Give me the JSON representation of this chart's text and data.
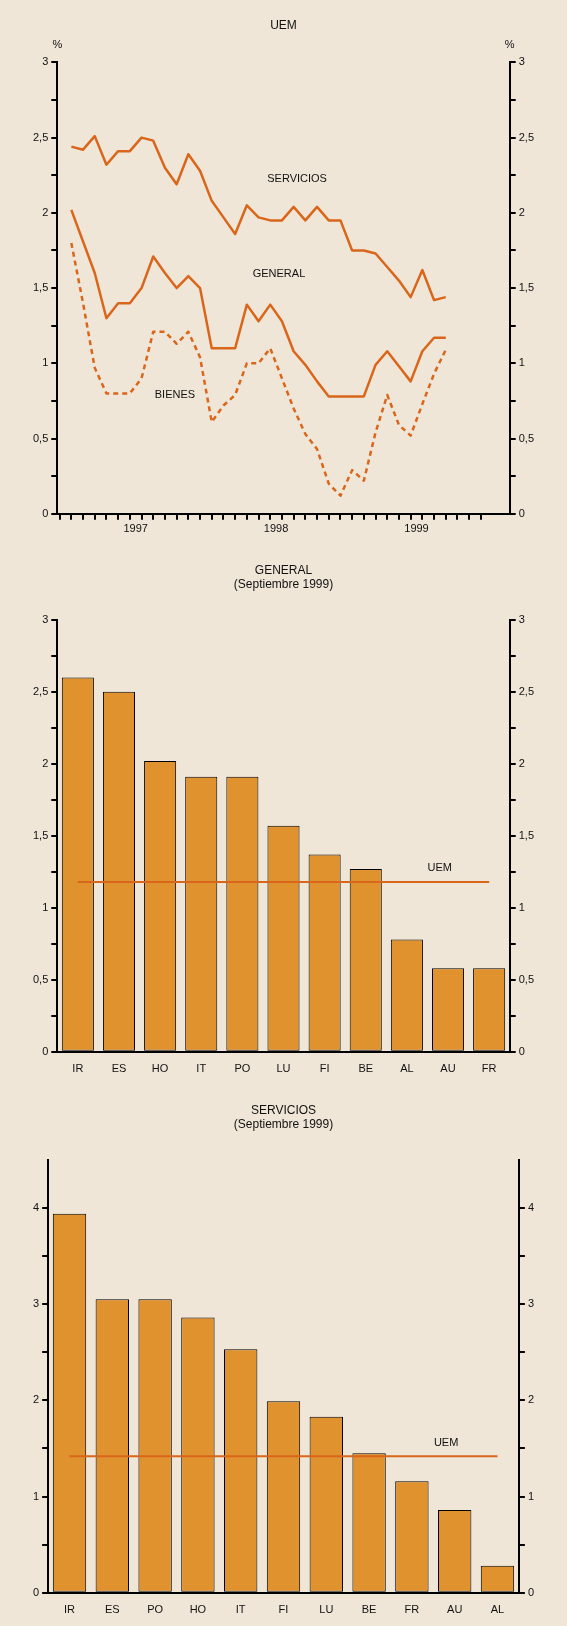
{
  "chart_data": [
    {
      "type": "line",
      "title": "UEM",
      "ylabel": "%",
      "y2label": "%",
      "marker": "none",
      "legend": false,
      "grid": false,
      "x": [
        "1997-01",
        "1997-02",
        "1997-03",
        "1997-04",
        "1997-05",
        "1997-06",
        "1997-07",
        "1997-08",
        "1997-09",
        "1997-10",
        "1997-11",
        "1997-12",
        "1998-01",
        "1998-02",
        "1998-03",
        "1998-04",
        "1998-05",
        "1998-06",
        "1998-07",
        "1998-08",
        "1998-09",
        "1998-10",
        "1998-11",
        "1998-12",
        "1999-01",
        "1999-02",
        "1999-03",
        "1999-04",
        "1999-05",
        "1999-06",
        "1999-07",
        "1999-08",
        "1999-09"
      ],
      "series": [
        {
          "name": "SERVICIOS",
          "color": "#d9661a",
          "line_style": "solid",
          "values": [
            2.44,
            2.42,
            2.51,
            2.32,
            2.41,
            2.41,
            2.5,
            2.48,
            2.3,
            2.19,
            2.39,
            2.28,
            2.08,
            1.97,
            1.86,
            2.05,
            1.97,
            1.95,
            1.95,
            2.04,
            1.95,
            2.04,
            1.95,
            1.95,
            1.75,
            1.75,
            1.73,
            1.64,
            1.55,
            1.44,
            1.62,
            1.42,
            1.44
          ]
        },
        {
          "name": "GENERAL",
          "color": "#d9661a",
          "line_style": "solid",
          "values": [
            2.02,
            1.81,
            1.6,
            1.3,
            1.4,
            1.4,
            1.5,
            1.71,
            1.6,
            1.5,
            1.58,
            1.5,
            1.1,
            1.1,
            1.1,
            1.39,
            1.28,
            1.39,
            1.28,
            1.08,
            0.99,
            0.88,
            0.78,
            0.78,
            0.78,
            0.78,
            0.99,
            1.08,
            0.98,
            0.88,
            1.08,
            1.17,
            1.17
          ]
        },
        {
          "name": "BIENES",
          "color": "#d9661a",
          "line_style": "dashed",
          "values": [
            1.8,
            1.4,
            0.97,
            0.8,
            0.8,
            0.8,
            0.9,
            1.21,
            1.21,
            1.13,
            1.21,
            1.04,
            0.61,
            0.72,
            0.79,
            1.0,
            1.0,
            1.1,
            0.9,
            0.7,
            0.53,
            0.43,
            0.2,
            0.12,
            0.29,
            0.22,
            0.54,
            0.79,
            0.59,
            0.52,
            0.73,
            0.93,
            1.09
          ]
        }
      ],
      "xlim": [
        "1996-11-25",
        "2000-02-15"
      ],
      "xticks": [
        {
          "value": "1996-12",
          "label": null
        },
        {
          "value": "1997-01",
          "label": null
        },
        {
          "value": "1997-02",
          "label": null
        },
        {
          "value": "1997-03",
          "label": null
        },
        {
          "value": "1997-04",
          "label": null
        },
        {
          "value": "1997-05",
          "label": null
        },
        {
          "value": "1997-06",
          "label": null
        },
        {
          "value": "1997-06-16",
          "label": "1997"
        },
        {
          "value": "1997-07",
          "label": null
        },
        {
          "value": "1997-08",
          "label": null
        },
        {
          "value": "1997-09",
          "label": null
        },
        {
          "value": "1997-10",
          "label": null
        },
        {
          "value": "1997-11",
          "label": null
        },
        {
          "value": "1997-12",
          "label": null
        },
        {
          "value": "1998-01",
          "label": null
        },
        {
          "value": "1998-02",
          "label": null
        },
        {
          "value": "1998-03",
          "label": null
        },
        {
          "value": "1998-04",
          "label": null
        },
        {
          "value": "1998-05",
          "label": null
        },
        {
          "value": "1998-06",
          "label": null
        },
        {
          "value": "1998-06-16",
          "label": "1998"
        },
        {
          "value": "1998-07",
          "label": null
        },
        {
          "value": "1998-08",
          "label": null
        },
        {
          "value": "1998-09",
          "label": null
        },
        {
          "value": "1998-10",
          "label": null
        },
        {
          "value": "1998-11",
          "label": null
        },
        {
          "value": "1998-12",
          "label": null
        },
        {
          "value": "1999-01",
          "label": null
        },
        {
          "value": "1999-02",
          "label": null
        },
        {
          "value": "1999-03",
          "label": null
        },
        {
          "value": "1999-04",
          "label": null
        },
        {
          "value": "1999-05",
          "label": null
        },
        {
          "value": "1999-06",
          "label": null
        },
        {
          "value": "1999-06-16",
          "label": "1999"
        },
        {
          "value": "1999-07",
          "label": null
        },
        {
          "value": "1999-08",
          "label": null
        },
        {
          "value": "1999-09",
          "label": null
        },
        {
          "value": "1999-10",
          "label": null
        },
        {
          "value": "1999-11",
          "label": null
        },
        {
          "value": "1999-12",
          "label": null
        }
      ],
      "ylim": [
        0,
        3
      ],
      "yticks": [
        0,
        {
          "value": 0.25,
          "label": null
        },
        {
          "value": 0.5,
          "label": "0,5"
        },
        {
          "value": 0.75,
          "label": null
        },
        1,
        {
          "value": 1.25,
          "label": null
        },
        {
          "value": 1.5,
          "label": "1,5"
        },
        {
          "value": 1.75,
          "label": null
        },
        2,
        {
          "value": 2.25,
          "label": null
        },
        {
          "value": 2.5,
          "label": "2,5"
        },
        {
          "value": 2.75,
          "label": null
        },
        3
      ],
      "y2lim": [
        0,
        3
      ],
      "y2ticks": [
        0,
        {
          "value": 0.25,
          "label": null
        },
        {
          "value": 0.5,
          "label": "0,5"
        },
        {
          "value": 0.75,
          "label": null
        },
        1,
        {
          "value": 1.25,
          "label": null
        },
        {
          "value": 1.5,
          "label": "1,5"
        },
        {
          "value": 1.75,
          "label": null
        },
        2,
        {
          "value": 2.25,
          "label": null
        },
        {
          "value": 2.5,
          "label": "2,5"
        },
        {
          "value": 2.75,
          "label": null
        },
        3
      ]
    },
    {
      "type": "bar",
      "title": "GENERAL",
      "subtitle": "(Septiembre 1999)",
      "legend": false,
      "grid": false,
      "color": "#e0922f",
      "categories": [
        "IR",
        "ES",
        "HO",
        "IT",
        "PO",
        "LU",
        "FI",
        "BE",
        "AL",
        "AU",
        "FR"
      ],
      "values": [
        2.6,
        2.5,
        2.02,
        1.91,
        1.91,
        1.57,
        1.37,
        1.27,
        0.78,
        0.58,
        0.58
      ],
      "ylim": [
        0,
        3
      ],
      "yticks": [
        0,
        {
          "value": 0.25,
          "label": null
        },
        {
          "value": 0.5,
          "label": "0,5"
        },
        {
          "value": 0.75,
          "label": null
        },
        1,
        {
          "value": 1.25,
          "label": null
        },
        {
          "value": 1.5,
          "label": "1,5"
        },
        {
          "value": 1.75,
          "label": null
        },
        2,
        {
          "value": 2.25,
          "label": null
        },
        {
          "value": 2.5,
          "label": "2,5"
        },
        {
          "value": 2.75,
          "label": null
        },
        3
      ],
      "y2lim": [
        0,
        3
      ],
      "y2ticks": [
        0,
        {
          "value": 0.25,
          "label": null
        },
        {
          "value": 0.5,
          "label": "0,5"
        },
        {
          "value": 0.75,
          "label": null
        },
        1,
        {
          "value": 1.25,
          "label": null
        },
        {
          "value": 1.5,
          "label": "1,5"
        },
        {
          "value": 1.75,
          "label": null
        },
        2,
        {
          "value": 2.25,
          "label": null
        },
        {
          "value": 2.5,
          "label": "2,5"
        },
        {
          "value": 2.75,
          "label": null
        },
        3
      ],
      "ref_lines": [
        {
          "axis": "y",
          "value": 1.18,
          "label": "UEM",
          "color": "#d9661a"
        }
      ]
    },
    {
      "type": "bar",
      "title": "SERVICIOS",
      "subtitle": "(Septiembre 1999)",
      "legend": false,
      "grid": false,
      "color": "#e0922f",
      "categories": [
        "IR",
        "ES",
        "PO",
        "HO",
        "IT",
        "FI",
        "LU",
        "BE",
        "FR",
        "AU",
        "AL"
      ],
      "values": [
        3.94,
        3.05,
        3.05,
        2.86,
        2.53,
        1.99,
        1.83,
        1.45,
        1.16,
        0.86,
        0.28
      ],
      "ylim": [
        0,
        4.5
      ],
      "yticks": [
        0,
        {
          "value": 0.5,
          "label": null
        },
        1,
        {
          "value": 1.5,
          "label": null
        },
        2,
        {
          "value": 2.5,
          "label": null
        },
        3,
        {
          "value": 3.5,
          "label": null
        },
        4
      ],
      "y2lim": [
        0,
        4.5
      ],
      "y2ticks": [
        0,
        {
          "value": 0.5,
          "label": null
        },
        1,
        {
          "value": 1.5,
          "label": null
        },
        2,
        {
          "value": 2.5,
          "label": null
        },
        3,
        {
          "value": 3.5,
          "label": null
        },
        4
      ],
      "ref_lines": [
        {
          "axis": "y",
          "value": 1.42,
          "label": "UEM",
          "color": "#d9661a"
        }
      ]
    }
  ]
}
